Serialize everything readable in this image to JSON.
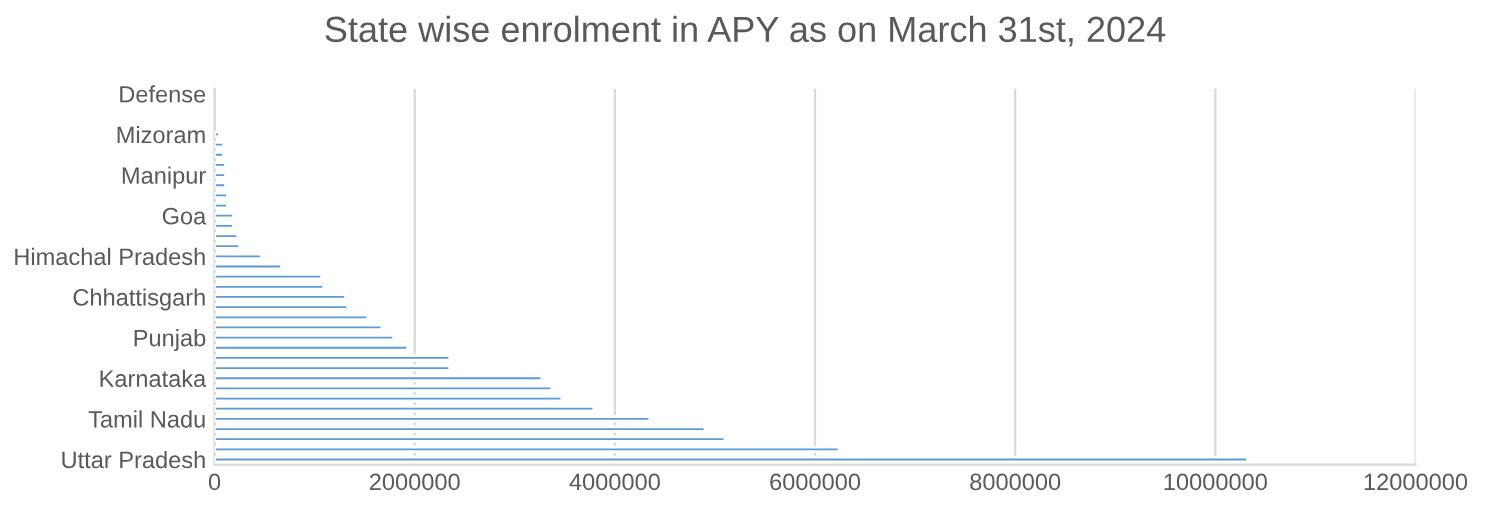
{
  "chart_data": {
    "type": "bar",
    "orientation": "horizontal",
    "title": "State wise enrolment in APY as on March 31st, 2024",
    "categories": [
      "Defense",
      null,
      null,
      null,
      "Mizoram",
      null,
      null,
      null,
      "Manipur",
      null,
      null,
      null,
      "Goa",
      null,
      null,
      null,
      "Himachal Pradesh",
      null,
      null,
      null,
      "Chhattisgarh",
      null,
      null,
      null,
      "Punjab",
      null,
      null,
      null,
      "Karnataka",
      null,
      null,
      null,
      "Tamil Nadu",
      null,
      null,
      null,
      "Uttar Pradesh"
    ],
    "values": [
      null,
      null,
      null,
      null,
      50000,
      90000,
      90000,
      110000,
      110000,
      110000,
      130000,
      130000,
      190000,
      190000,
      230000,
      250000,
      470000,
      670000,
      1070000,
      1090000,
      1310000,
      1330000,
      1530000,
      1670000,
      1790000,
      1930000,
      2350000,
      2350000,
      3270000,
      3370000,
      3470000,
      3790000,
      4350000,
      4900000,
      5100000,
      6240000,
      10320000
    ],
    "color": "#5b9bd5",
    "xlim": [
      0,
      12000000
    ],
    "xticks": [
      0,
      2000000,
      4000000,
      6000000,
      8000000,
      10000000,
      12000000
    ],
    "grid": "x"
  }
}
